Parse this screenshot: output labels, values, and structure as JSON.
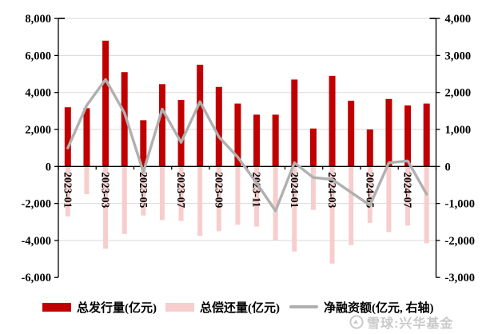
{
  "chart_data": {
    "type": "combo",
    "categories": [
      "2023-01",
      "2023-02",
      "2023-03",
      "2023-04",
      "2023-05",
      "2023-06",
      "2023-07",
      "2023-08",
      "2023-09",
      "2023-10",
      "2023-11",
      "2023-12",
      "2024-01",
      "2024-02",
      "2024-03",
      "2024-04",
      "2024-05",
      "2024-06",
      "2024-07",
      "2024-08"
    ],
    "x_tick_labels": [
      "2023-01",
      "2023-03",
      "2023-05",
      "2023-07",
      "2023-09",
      "2023-11",
      "2024-01",
      "2024-03",
      "2024-05",
      "2024-07"
    ],
    "series": [
      {
        "name": "总发行量(亿元)",
        "type": "bar",
        "axis": "left",
        "color": "#c00000",
        "values": [
          3200,
          3150,
          6800,
          5100,
          2500,
          4450,
          3600,
          5500,
          4300,
          3400,
          2800,
          2800,
          4700,
          2050,
          4900,
          3550,
          2000,
          3650,
          3300,
          3400
        ]
      },
      {
        "name": "总偿还量(亿元)",
        "type": "bar",
        "axis": "left",
        "color": "#f8cdcd",
        "values": [
          -2700,
          -1500,
          -4450,
          -3650,
          -2650,
          -2900,
          -2950,
          -3750,
          -3500,
          -3150,
          -3250,
          -4000,
          -4600,
          -2350,
          -5250,
          -4250,
          -3050,
          -3550,
          -3200,
          -4150
        ]
      },
      {
        "name": "净融资额(亿元, 右轴)",
        "type": "line",
        "axis": "right",
        "color": "#b0b0b0",
        "values": [
          500,
          1650,
          2350,
          1450,
          -150,
          1550,
          650,
          1750,
          800,
          250,
          -450,
          -1200,
          100,
          -300,
          -350,
          -700,
          -1050,
          100,
          150,
          -750
        ]
      }
    ],
    "left_axis": {
      "min": -6000,
      "max": 8000,
      "tick_step": 2000,
      "tick_labels": [
        "8,000",
        "6,000",
        "4,000",
        "2,000",
        "0",
        "-2,000",
        "-4,000",
        "-6,000"
      ]
    },
    "right_axis": {
      "min": -3000,
      "max": 4000,
      "tick_step": 1000,
      "tick_labels": [
        "4,000",
        "3,000",
        "2,000",
        "1,000",
        "0",
        "-1,000",
        "-2,000",
        "-3,000"
      ]
    },
    "grid": true,
    "legend_position": "bottom",
    "grid_color": "#d9d9d9",
    "axis_color": "#000000"
  },
  "watermark": {
    "logo_icon": "xueqiu-logo",
    "text": "雪球:兴华基金"
  }
}
